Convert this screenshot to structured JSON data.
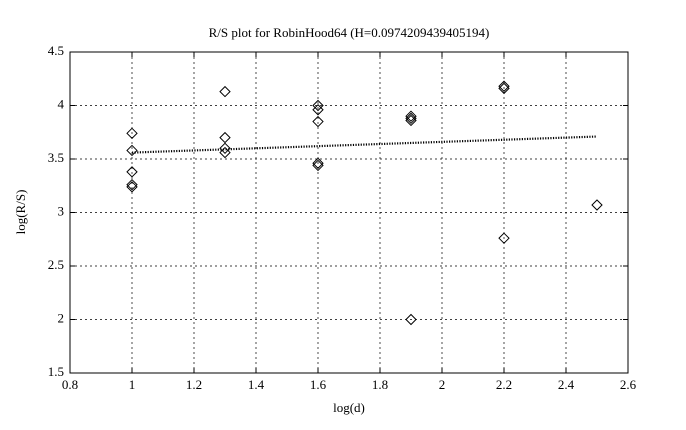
{
  "chart_data": {
    "type": "scatter",
    "title": "R/S plot for RobinHood64 (H=0.0974209439405194)",
    "x_label": "log(d)",
    "y_label": "log(R/S)",
    "xlim": [
      0.8,
      2.6
    ],
    "xticks": [
      0.8,
      1,
      1.2,
      1.4,
      1.6,
      1.8,
      2,
      2.2,
      2.4,
      2.6
    ],
    "ylim": [
      1.5,
      4.5
    ],
    "yticks": [
      1.5,
      2,
      2.5,
      3,
      3.5,
      4,
      4.5
    ],
    "grid": true,
    "series": [
      {
        "type": "scatter",
        "marker": "diamond",
        "color": "#000000",
        "x": [
          1,
          1,
          1,
          1,
          1,
          1.3,
          1.3,
          1.3,
          1.3,
          1.6,
          1.6,
          1.6,
          1.6,
          1.6,
          1.9,
          1.9,
          1.9,
          1.9,
          2.2,
          2.2,
          2.2,
          2.5
        ],
        "values": [
          3.74,
          3.58,
          3.38,
          3.26,
          3.24,
          4.13,
          3.7,
          3.6,
          3.56,
          4.0,
          3.96,
          3.85,
          3.46,
          3.44,
          3.9,
          3.88,
          3.86,
          2.0,
          4.18,
          4.16,
          2.76,
          3.07
        ]
      },
      {
        "type": "line",
        "style": "dotted",
        "color": "#000000",
        "x": [
          1,
          2.5
        ],
        "values": [
          3.56,
          3.71
        ]
      }
    ]
  }
}
